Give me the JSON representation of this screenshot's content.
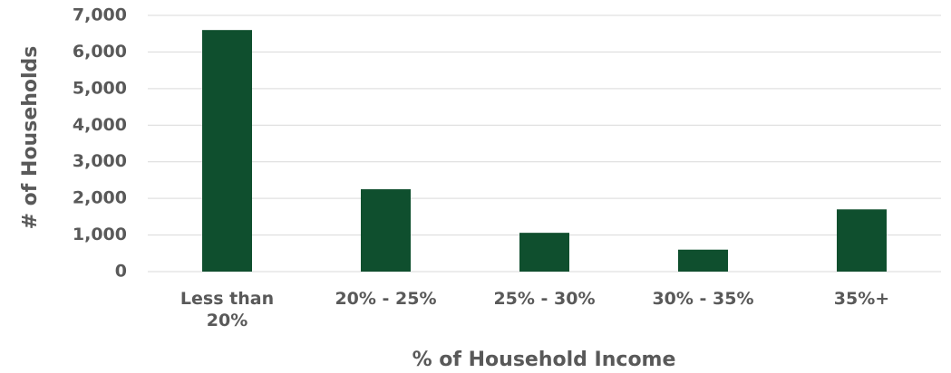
{
  "chart_data": {
    "type": "bar",
    "x_label": "% of Household Income",
    "y_label": "# of Households",
    "categories": [
      "Less than 20%",
      "20% - 25%",
      "25% - 30%",
      "30% - 35%",
      "35%+"
    ],
    "values": [
      6600,
      2250,
      1060,
      600,
      1700
    ],
    "color": "#0f4f2e",
    "ylim": [
      0,
      7000
    ],
    "yticks": [
      0,
      {
        "value": 1000,
        "label": "1,000"
      },
      {
        "value": 2000,
        "label": "2,000"
      },
      {
        "value": 3000,
        "label": "3,000"
      },
      {
        "value": 4000,
        "label": "4,000"
      },
      {
        "value": 5000,
        "label": "5,000"
      },
      {
        "value": 6000,
        "label": "6,000"
      },
      {
        "value": 7000,
        "label": "7,000"
      }
    ],
    "grid": true
  }
}
